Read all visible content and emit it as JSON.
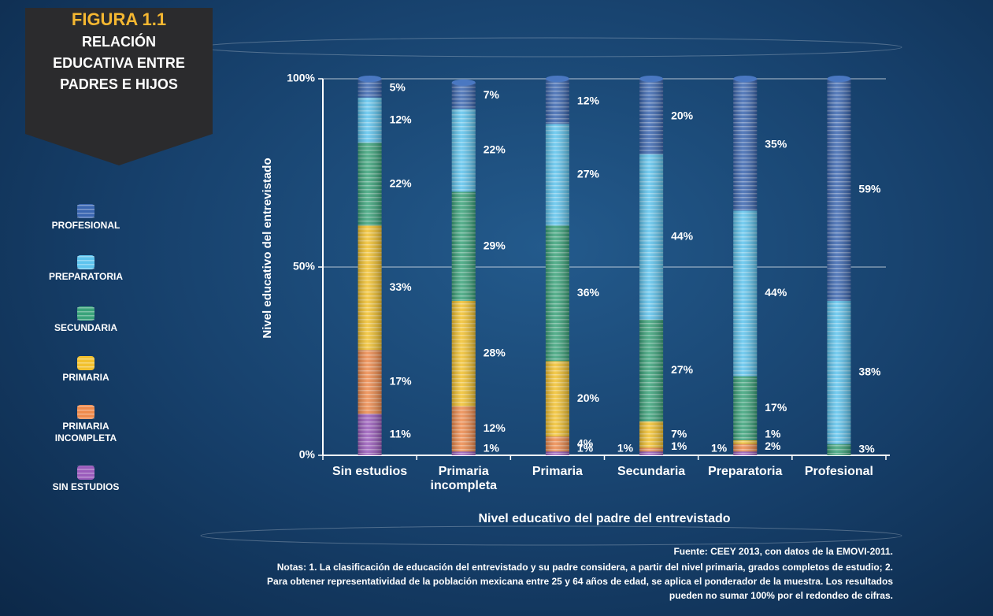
{
  "chart_data": {
    "type": "stacked-bar",
    "figure_label": "FIGURA 1.1",
    "title": "RELACIÓN EDUCATIVA ENTRE PADRES E HIJOS",
    "y_label": "Nivel educativo del entrevistado",
    "x_label": "Nivel educativo del padre del entrevistado",
    "source": "Fuente: CEEY 2013, con datos de la EMOVI-2011.",
    "notes": "Notas: 1. La clasificación de educación del entrevistado y su padre considera, a partir del nivel primaria, grados completos de estudio; 2. Para obtener representatividad de la población mexicana entre 25 y 64 años de edad, se aplica el ponderador de la muestra. Los resultados pueden no sumar 100% por el redondeo de cifras.",
    "categories": [
      "Sin estudios",
      "Primaria incompleta",
      "Primaria",
      "Secundaria",
      "Preparatoria",
      "Profesional"
    ],
    "series": [
      {
        "name": "SIN ESTUDIOS",
        "color": "#9a5bbb",
        "values": [
          11,
          1,
          1,
          1,
          1,
          null
        ],
        "value_labels": [
          "11%",
          "1%",
          "1%",
          "1%",
          "1%",
          null
        ]
      },
      {
        "name": "PRIMARIA INCOMPLETA",
        "color": "#ee8a4c",
        "values": [
          17,
          12,
          4,
          1,
          2,
          null
        ],
        "value_labels": [
          "17%",
          "12%",
          "4%",
          "1%",
          "2%",
          null
        ]
      },
      {
        "name": "PRIMARIA",
        "color": "#f2c12e",
        "values": [
          33,
          28,
          20,
          7,
          1,
          null
        ],
        "value_labels": [
          "33%",
          "28%",
          "20%",
          "7%",
          "1%",
          null
        ]
      },
      {
        "name": "SECUNDARIA",
        "color": "#3aa37a",
        "values": [
          22,
          29,
          36,
          27,
          17,
          3
        ],
        "value_labels": [
          "22%",
          "29%",
          "36%",
          "27%",
          "17%",
          "3%"
        ]
      },
      {
        "name": "PREPARATORIA",
        "color": "#5ec4ee",
        "values": [
          12,
          22,
          27,
          44,
          44,
          38
        ],
        "value_labels": [
          "12%",
          "22%",
          "27%",
          "44%",
          "44%",
          "38%"
        ]
      },
      {
        "name": "PROFESIONAL",
        "color": "#3a66b0",
        "values": [
          5,
          7,
          12,
          20,
          35,
          59
        ],
        "value_labels": [
          "5%",
          "7%",
          "12%",
          "20%",
          "35%",
          "59%"
        ]
      }
    ],
    "ylim": [
      0,
      100
    ],
    "yticks": [
      {
        "value": 0,
        "label": "0%"
      },
      {
        "value": 50,
        "label": "50%"
      },
      {
        "value": 100,
        "label": "100%"
      }
    ],
    "grid": true
  }
}
